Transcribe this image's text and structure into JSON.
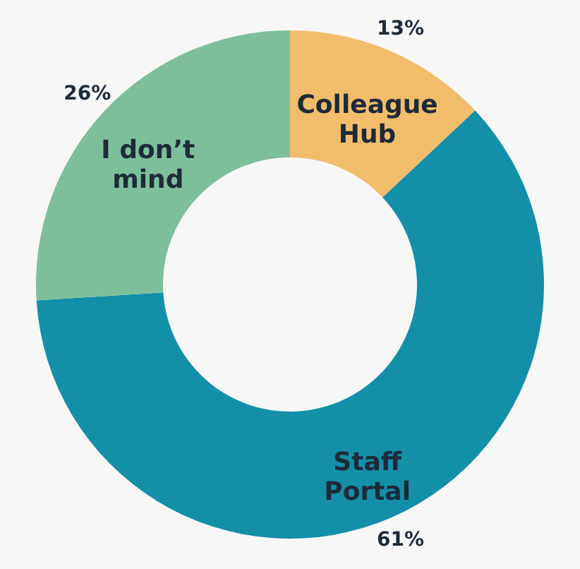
{
  "chart_data": {
    "type": "donut",
    "categories": [
      "Colleague Hub",
      "Staff Portal",
      "I don’t mind"
    ],
    "values": [
      13,
      61,
      26
    ],
    "value_labels": [
      "13%",
      "61%",
      "26%"
    ],
    "colors": [
      "#f2bd6b",
      "#138fa8",
      "#7dbf9a"
    ]
  }
}
